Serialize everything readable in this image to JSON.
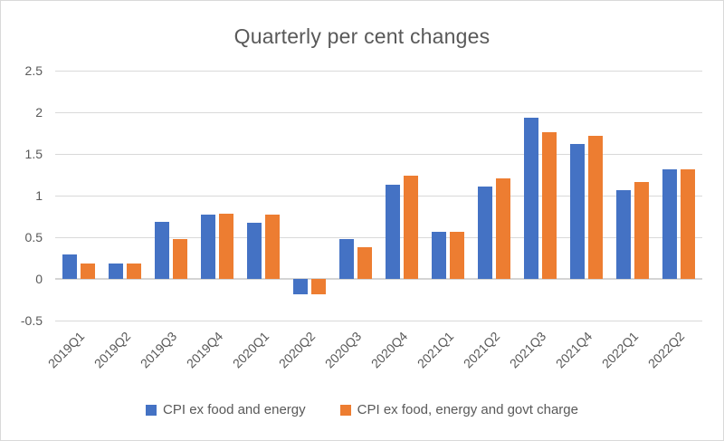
{
  "chart_data": {
    "type": "bar",
    "title": "Quarterly per cent changes",
    "xlabel": "",
    "ylabel": "",
    "categories": [
      "2019Q1",
      "2019Q2",
      "2019Q3",
      "2019Q4",
      "2020Q1",
      "2020Q2",
      "2020Q3",
      "2020Q4",
      "2021Q1",
      "2021Q2",
      "2021Q3",
      "2021Q4",
      "2022Q1",
      "2022Q2"
    ],
    "series": [
      {
        "name": "CPI ex food and energy",
        "color": "#4472C4",
        "values": [
          0.29,
          0.19,
          0.68,
          0.77,
          0.67,
          -0.19,
          0.48,
          1.13,
          0.56,
          1.11,
          1.94,
          1.62,
          1.07,
          1.32
        ]
      },
      {
        "name": "CPI ex food, energy and govt charge",
        "color": "#ED7D31",
        "values": [
          0.19,
          0.19,
          0.48,
          0.78,
          0.77,
          -0.19,
          0.38,
          1.24,
          0.56,
          1.21,
          1.76,
          1.72,
          1.16,
          1.32
        ]
      }
    ],
    "ylim": [
      -0.5,
      2.5
    ],
    "yticks": [
      2.5,
      2,
      1.5,
      1,
      0.5,
      0,
      -0.5
    ],
    "grid": true,
    "legend_position": "bottom"
  },
  "colors": {
    "series1": "#4472C4",
    "series2": "#ED7D31",
    "text": "#595959",
    "gridline": "#D9D9D9",
    "axis_line": "#D4D4D4",
    "background": "#FFFFFF",
    "border": "#D9D9D9"
  }
}
